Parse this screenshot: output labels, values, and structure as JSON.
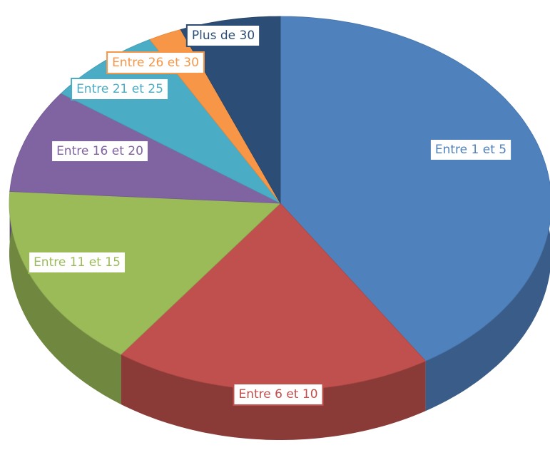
{
  "chart_data": {
    "type": "pie",
    "categories": [
      "Entre 1 et 5",
      "Entre 6 et 10",
      "Entre 11 et 15",
      "Entre 16 et 20",
      "Entre 21 et 25",
      "Entre 26 et 30",
      "Plus de 30"
    ],
    "values": [
      41,
      19,
      16,
      9,
      7,
      2,
      6
    ],
    "colors": [
      "#4f81bd",
      "#c0504d",
      "#9bbb59",
      "#8064a2",
      "#4bacc6",
      "#f79646",
      "#2c4d75"
    ]
  }
}
